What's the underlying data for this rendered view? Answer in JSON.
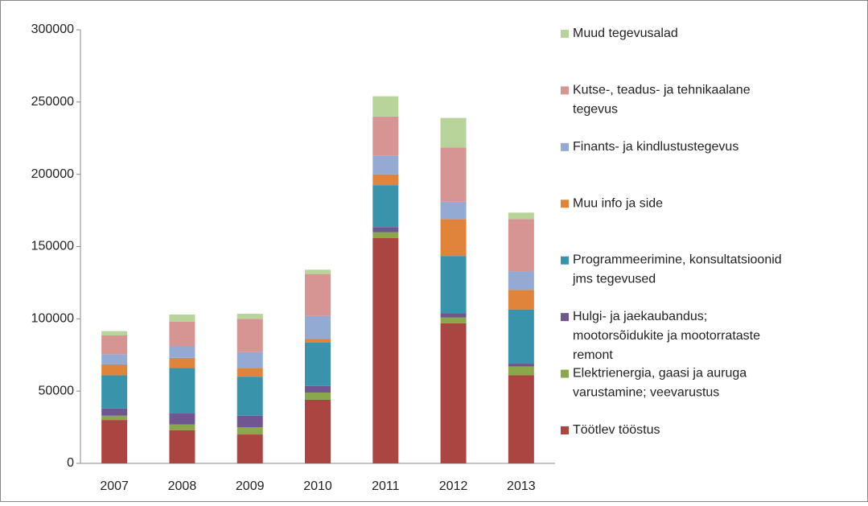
{
  "chart_data": {
    "type": "stacked_bar",
    "categories": [
      "2007",
      "2008",
      "2009",
      "2010",
      "2011",
      "2012",
      "2013"
    ],
    "series": [
      {
        "name": "Töötlev tööstus",
        "color": "#ab4542",
        "values": [
          30000,
          23000,
          20000,
          44000,
          156000,
          97000,
          61000
        ]
      },
      {
        "name": "Elektrienergia, gaasi ja auruga varustamine; veevarustus",
        "color": "#8aa74c",
        "values": [
          3000,
          4000,
          5000,
          5000,
          4000,
          4000,
          6000
        ]
      },
      {
        "name": "Hulgi- ja jaekaubandus; mootorsõidukite ja mootorrataste remont",
        "color": "#6f5690",
        "values": [
          5000,
          7500,
          8000,
          4500,
          3500,
          3000,
          2000
        ]
      },
      {
        "name": "Programmeerimine, konsultatsioonid jms tegevused",
        "color": "#3994ab",
        "values": [
          23000,
          31500,
          27000,
          30000,
          29000,
          39500,
          37500
        ]
      },
      {
        "name": "Muu info ja side",
        "color": "#e0843b",
        "values": [
          7500,
          7000,
          6000,
          2500,
          7500,
          25500,
          13500
        ]
      },
      {
        "name": "Finants- ja kindlustustegevus",
        "color": "#95aad3",
        "values": [
          7000,
          8000,
          11000,
          16000,
          13000,
          12000,
          13000
        ]
      },
      {
        "name": "Kutse-, teadus- ja tehnikaalane tegevus",
        "color": "#d69493",
        "values": [
          13000,
          17000,
          23000,
          29000,
          27000,
          37500,
          36000
        ]
      },
      {
        "name": "Muud tegevusalad",
        "color": "#b8d49b",
        "values": [
          3000,
          5000,
          3500,
          3000,
          14000,
          20500,
          4500
        ]
      }
    ],
    "ylim": [
      0,
      300000
    ],
    "yticks": [
      0,
      50000,
      100000,
      150000,
      200000,
      250000,
      300000
    ],
    "grid": false,
    "legend": "right"
  }
}
